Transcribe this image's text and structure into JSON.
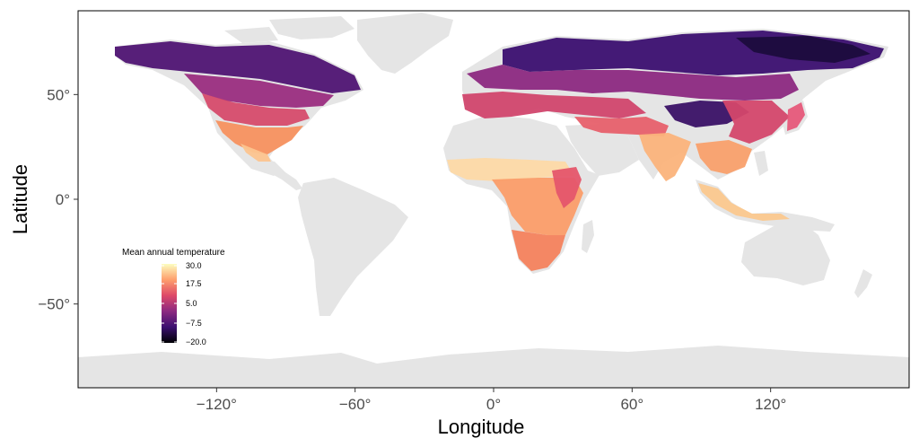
{
  "chart_data": {
    "type": "heatmap",
    "xlabel": "Longitude",
    "ylabel": "Latitude",
    "xlim": [
      -180,
      180
    ],
    "ylim": [
      -90,
      90
    ],
    "x_ticks": [
      -120,
      -60,
      0,
      60,
      120
    ],
    "y_ticks": [
      50,
      0,
      -50
    ],
    "x_tick_labels": [
      "−120°",
      "−60°",
      "0°",
      "60°",
      "120°"
    ],
    "y_tick_labels": [
      "50°",
      "0°",
      "−50°"
    ],
    "grid": false,
    "legend": {
      "title": "Mean annual temperature",
      "placement": "bottom-left",
      "min": -20.0,
      "max": 30.0,
      "breaks": [
        30.0,
        17.5,
        5.0,
        -7.5,
        -20.0
      ],
      "break_labels": [
        "30.0",
        "17.5",
        "5.0",
        "−7.5",
        "−20.0"
      ]
    },
    "colors": {
      "land": "#e5e5e5",
      "scale": [
        "#000004",
        "#3b0f70",
        "#8c2981",
        "#de4968",
        "#fe9f6d",
        "#fcfdbf"
      ]
    }
  }
}
